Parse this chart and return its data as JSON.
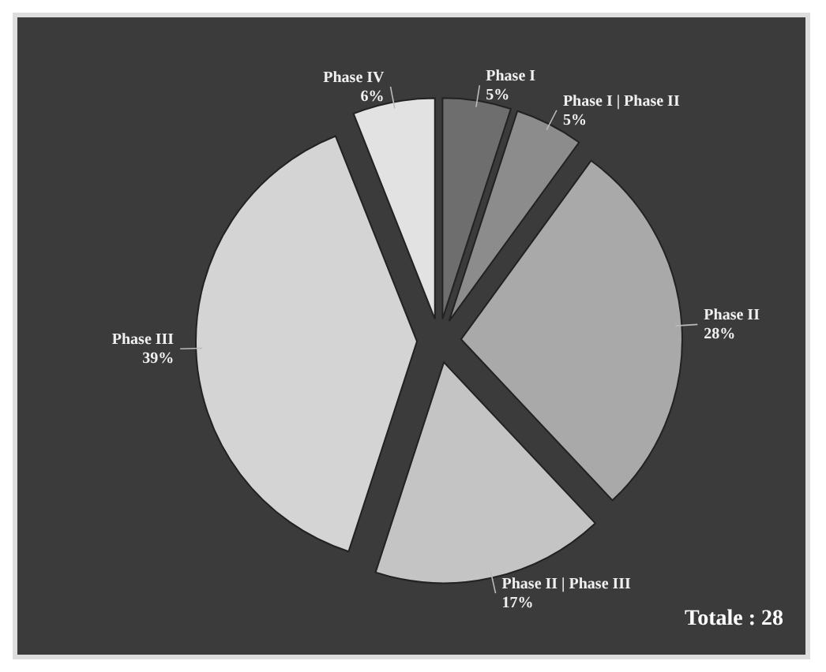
{
  "chart_data": {
    "type": "pie",
    "categories": [
      "Phase I",
      "Phase I | Phase II",
      "Phase II",
      "Phase II | Phase III",
      "Phase III",
      "Phase IV"
    ],
    "values": [
      5,
      5,
      28,
      17,
      39,
      6
    ],
    "value_labels": [
      "5%",
      "5%",
      "28%",
      "17%",
      "39%",
      "6%"
    ],
    "colors": [
      "#6e6e6e",
      "#8c8c8c",
      "#a9a9a9",
      "#c4c4c4",
      "#d4d4d4",
      "#e2e2e2"
    ],
    "annotations": [
      "Totale : 28"
    ]
  }
}
